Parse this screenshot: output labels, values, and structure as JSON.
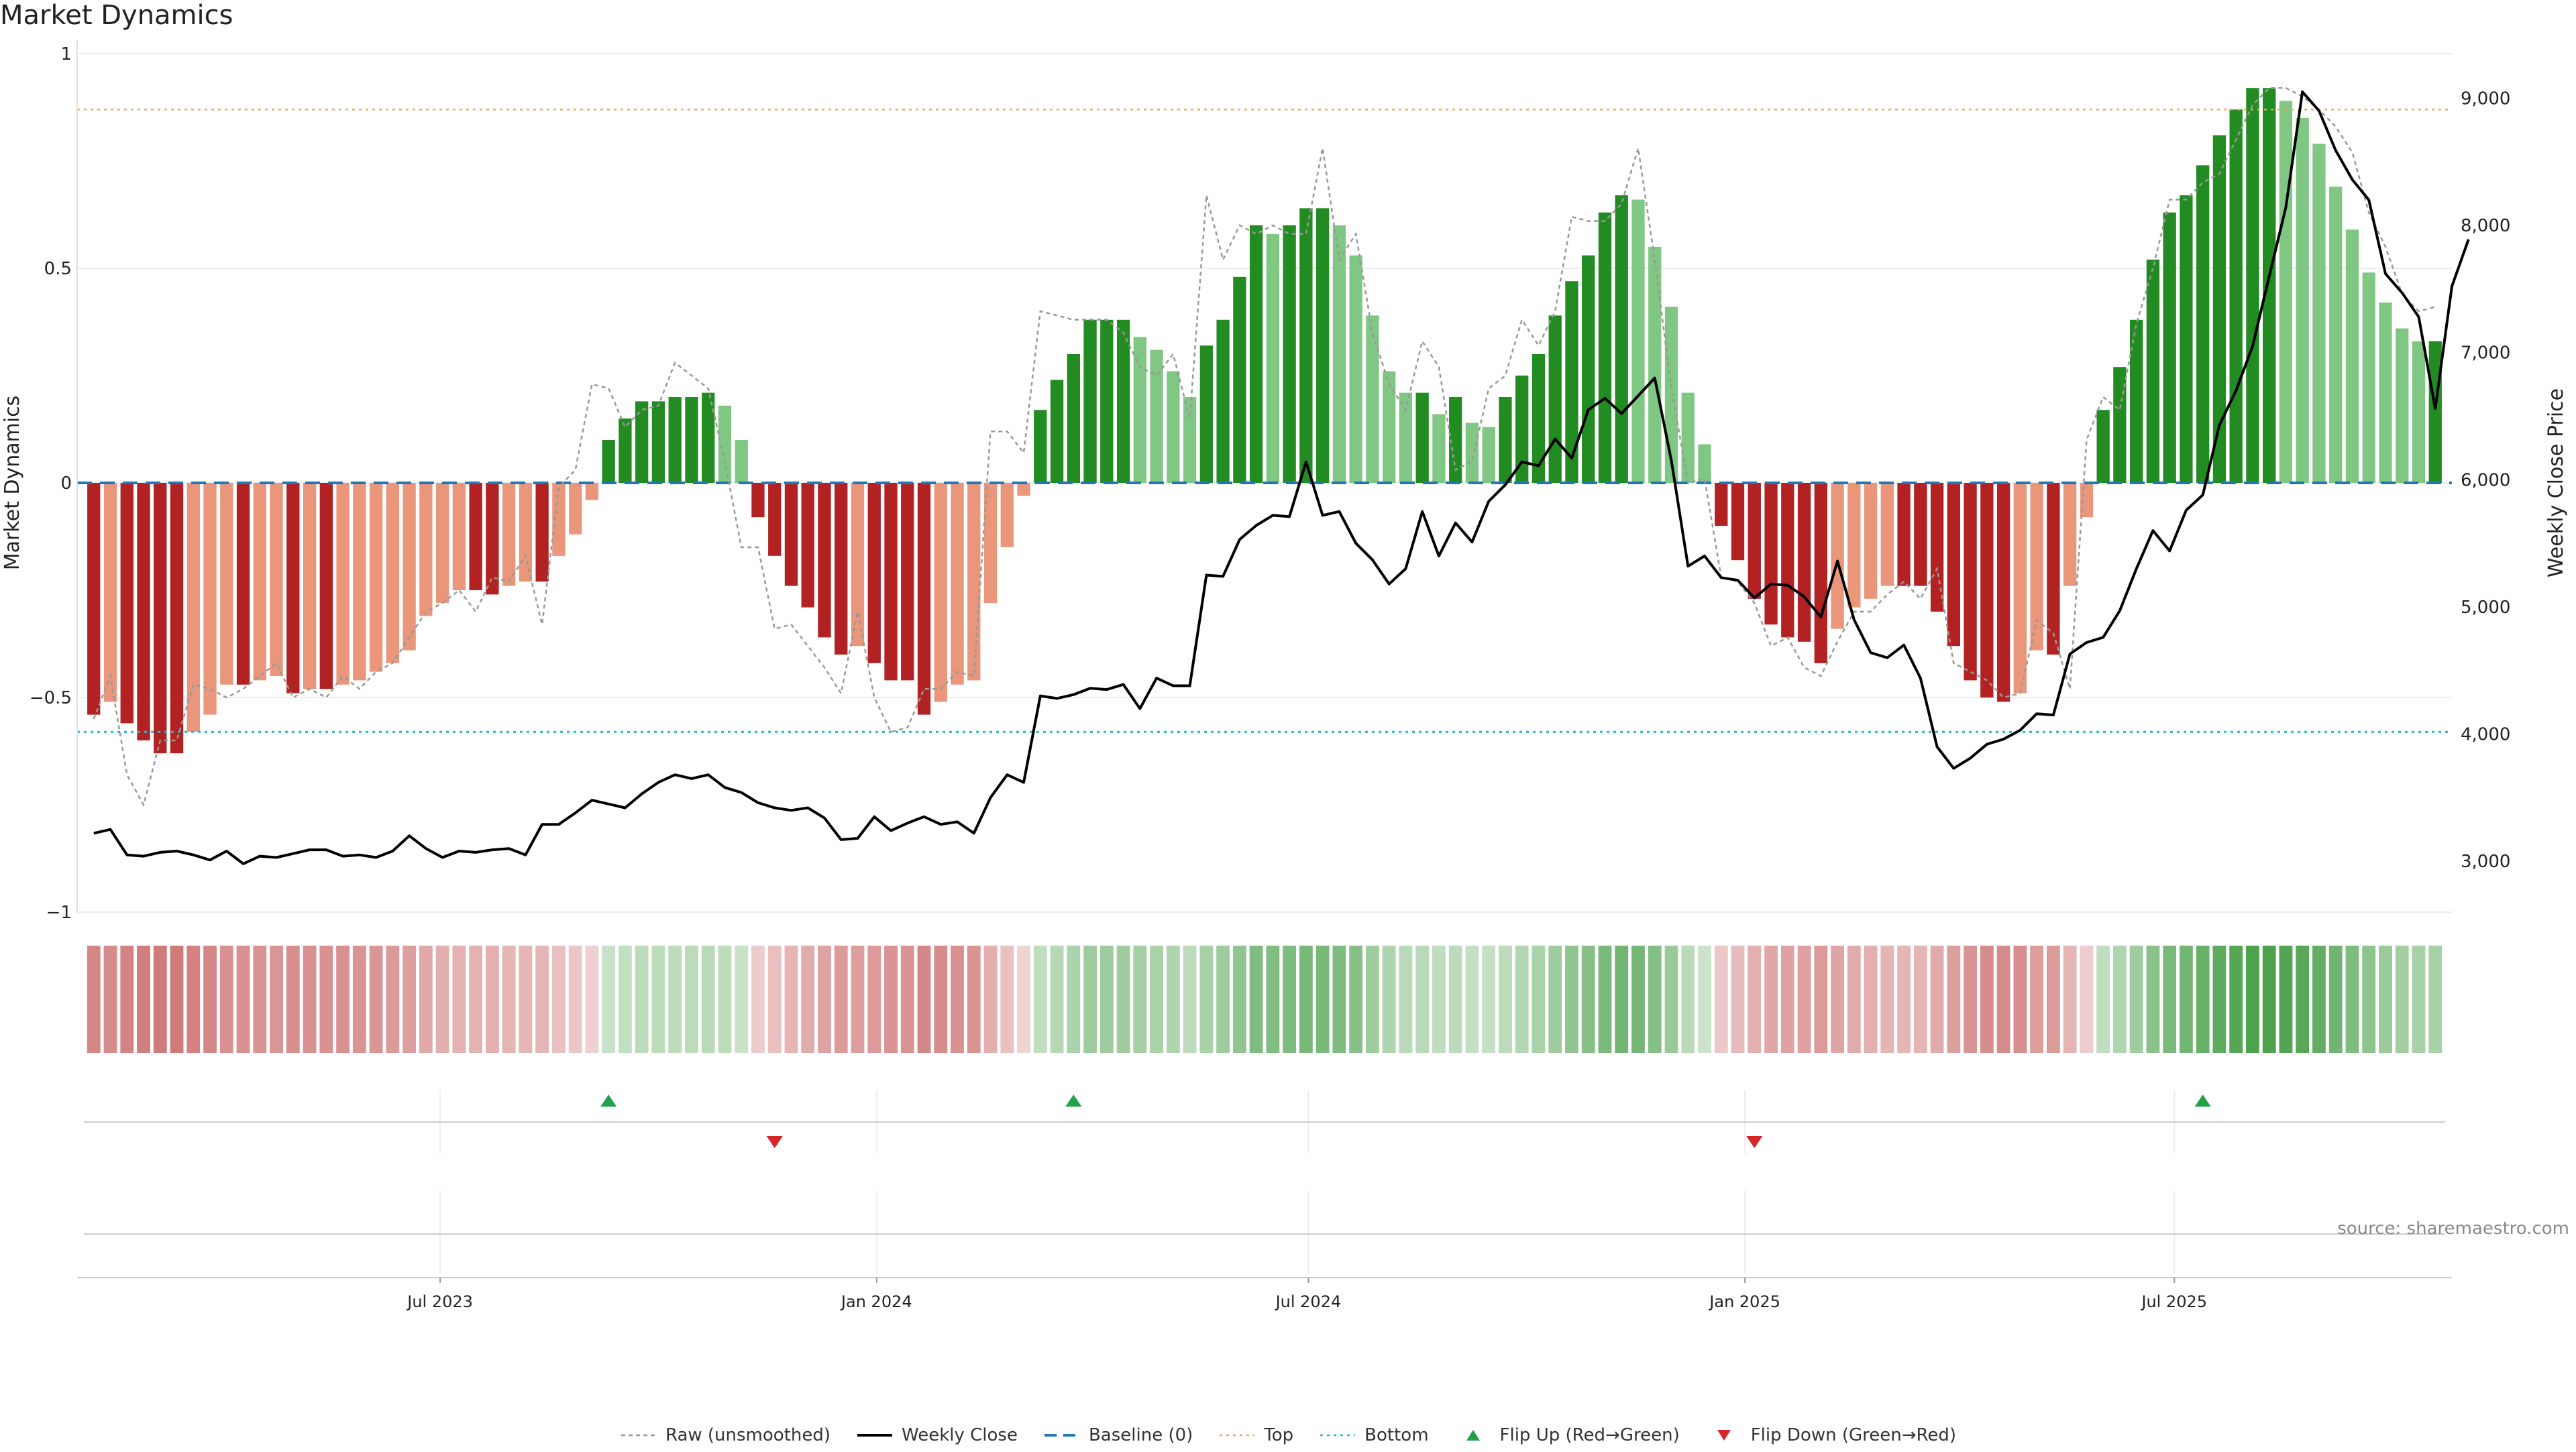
{
  "title": "Market Dynamics",
  "source": "source: sharemaestro.com",
  "chart_data": {
    "type": "bar",
    "ylabel": "Market Dynamics",
    "y2label": "Weekly Close Price",
    "ylim": [
      -1,
      1
    ],
    "y2lim": [
      2600,
      9350
    ],
    "yticks": [
      {
        "v": -1,
        "l": "−1"
      },
      {
        "v": -0.5,
        "l": "−0.5"
      },
      {
        "v": 0,
        "l": "0"
      },
      {
        "v": 0.5,
        "l": "0.5"
      },
      {
        "v": 1,
        "l": "1"
      }
    ],
    "y2ticks": [
      {
        "v": 3000,
        "l": "3,000"
      },
      {
        "v": 4000,
        "l": "4,000"
      },
      {
        "v": 5000,
        "l": "5,000"
      },
      {
        "v": 6000,
        "l": "6,000"
      },
      {
        "v": 7000,
        "l": "7,000"
      },
      {
        "v": 8000,
        "l": "8,000"
      },
      {
        "v": 9000,
        "l": "9,000"
      }
    ],
    "xlim": [
      "2023-01-29",
      "2025-10-26"
    ],
    "xticks": [
      {
        "d": "2023-07-01",
        "l": "Jul 2023"
      },
      {
        "d": "2024-01-01",
        "l": "Jan 2024"
      },
      {
        "d": "2024-07-01",
        "l": "Jul 2024"
      },
      {
        "d": "2025-01-01",
        "l": "Jan 2025"
      },
      {
        "d": "2025-07-01",
        "l": "Jul 2025"
      }
    ],
    "start_week": "2023-02-05",
    "top": 0.87,
    "bottom": -0.58,
    "baseline": 0,
    "colors": {
      "green_strong": "#228b22",
      "green_weak": "#81c784",
      "red_strong": "#b22222",
      "red_weak": "#e9967a",
      "close": "#000000",
      "raw": "#999999",
      "baseline": "#1f77b4",
      "top": "#f4a460",
      "bottom": "#17becf",
      "flip_up": "#22a04a",
      "flip_down": "#d62728"
    },
    "bars": [
      -0.54,
      -0.51,
      -0.56,
      -0.6,
      -0.63,
      -0.63,
      -0.58,
      -0.54,
      -0.47,
      -0.47,
      -0.46,
      -0.45,
      -0.49,
      -0.48,
      -0.48,
      -0.47,
      -0.46,
      -0.44,
      -0.42,
      -0.39,
      -0.31,
      -0.28,
      -0.25,
      -0.25,
      -0.26,
      -0.24,
      -0.23,
      -0.23,
      -0.17,
      -0.12,
      -0.04,
      0.1,
      0.15,
      0.19,
      0.19,
      0.2,
      0.2,
      0.21,
      0.18,
      0.1,
      -0.08,
      -0.17,
      -0.24,
      -0.29,
      -0.36,
      -0.4,
      -0.38,
      -0.42,
      -0.46,
      -0.46,
      -0.54,
      -0.51,
      -0.47,
      -0.46,
      -0.28,
      -0.15,
      -0.03,
      0.17,
      0.24,
      0.3,
      0.38,
      0.38,
      0.38,
      0.34,
      0.31,
      0.26,
      0.2,
      0.32,
      0.38,
      0.48,
      0.6,
      0.58,
      0.6,
      0.64,
      0.64,
      0.6,
      0.53,
      0.39,
      0.26,
      0.21,
      0.21,
      0.16,
      0.2,
      0.14,
      0.13,
      0.2,
      0.25,
      0.3,
      0.39,
      0.47,
      0.53,
      0.63,
      0.67,
      0.66,
      0.55,
      0.41,
      0.21,
      0.09,
      -0.1,
      -0.18,
      -0.27,
      -0.33,
      -0.36,
      -0.37,
      -0.42,
      -0.34,
      -0.29,
      -0.27,
      -0.24,
      -0.24,
      -0.24,
      -0.3,
      -0.38,
      -0.46,
      -0.5,
      -0.51,
      -0.49,
      -0.39,
      -0.4,
      -0.24,
      -0.08,
      0.17,
      0.27,
      0.38,
      0.52,
      0.63,
      0.67,
      0.74,
      0.81,
      0.87,
      0.92,
      0.92,
      0.89,
      0.85,
      0.79,
      0.69,
      0.59,
      0.49,
      0.42,
      0.36,
      0.33,
      0.33
    ],
    "raw": [
      -0.55,
      -0.45,
      -0.68,
      -0.75,
      -0.6,
      -0.6,
      -0.47,
      -0.48,
      -0.5,
      -0.48,
      -0.45,
      -0.42,
      -0.5,
      -0.48,
      -0.5,
      -0.45,
      -0.48,
      -0.44,
      -0.42,
      -0.36,
      -0.3,
      -0.28,
      -0.25,
      -0.3,
      -0.22,
      -0.23,
      -0.17,
      -0.33,
      -0.01,
      0.03,
      0.23,
      0.22,
      0.13,
      0.17,
      0.18,
      0.28,
      0.25,
      0.22,
      0.05,
      -0.15,
      -0.15,
      -0.34,
      -0.33,
      -0.38,
      -0.43,
      -0.49,
      -0.3,
      -0.5,
      -0.58,
      -0.57,
      -0.48,
      -0.48,
      -0.44,
      -0.45,
      0.12,
      0.12,
      0.07,
      0.4,
      0.39,
      0.38,
      0.38,
      0.38,
      0.35,
      0.27,
      0.25,
      0.3,
      0.15,
      0.67,
      0.52,
      0.6,
      0.58,
      0.6,
      0.58,
      0.58,
      0.78,
      0.52,
      0.58,
      0.35,
      0.23,
      0.17,
      0.33,
      0.27,
      0.03,
      0.05,
      0.22,
      0.25,
      0.38,
      0.32,
      0.4,
      0.62,
      0.61,
      0.61,
      0.65,
      0.78,
      0.52,
      0.22,
      0.0,
      0.01,
      -0.22,
      -0.23,
      -0.28,
      -0.38,
      -0.36,
      -0.43,
      -0.45,
      -0.37,
      -0.3,
      -0.3,
      -0.26,
      -0.23,
      -0.27,
      -0.2,
      -0.42,
      -0.44,
      -0.46,
      -0.5,
      -0.49,
      -0.32,
      -0.35,
      -0.48,
      0.1,
      0.2,
      0.17,
      0.37,
      0.5,
      0.66,
      0.66,
      0.7,
      0.72,
      0.8,
      0.88,
      0.92,
      0.92,
      0.9,
      0.87,
      0.83,
      0.77,
      0.63,
      0.55,
      0.44,
      0.4,
      0.41
    ],
    "weekly_close": [
      3220,
      3250,
      3050,
      3040,
      3070,
      3080,
      3050,
      3010,
      3080,
      2980,
      3040,
      3030,
      3060,
      3090,
      3090,
      3040,
      3050,
      3030,
      3080,
      3200,
      3100,
      3030,
      3080,
      3070,
      3090,
      3100,
      3050,
      3290,
      3290,
      3380,
      3480,
      3450,
      3420,
      3530,
      3620,
      3680,
      3650,
      3680,
      3580,
      3540,
      3460,
      3420,
      3400,
      3420,
      3340,
      3170,
      3180,
      3350,
      3240,
      3300,
      3350,
      3290,
      3310,
      3220,
      3500,
      3680,
      3620,
      4300,
      4280,
      4310,
      4360,
      4350,
      4390,
      4200,
      4440,
      4380,
      4380,
      5250,
      5240,
      5530,
      5640,
      5720,
      5710,
      6140,
      5720,
      5750,
      5500,
      5370,
      5180,
      5300,
      5750,
      5400,
      5660,
      5510,
      5830,
      5960,
      6140,
      6110,
      6320,
      6170,
      6550,
      6640,
      6520,
      6660,
      6800,
      6150,
      5320,
      5400,
      5230,
      5210,
      5070,
      5180,
      5170,
      5080,
      4920,
      5360,
      4900,
      4640,
      4600,
      4700,
      4440,
      3900,
      3730,
      3810,
      3920,
      3960,
      4030,
      4160,
      4150,
      4630,
      4720,
      4760,
      4970,
      5300,
      5600,
      5440,
      5760,
      5880,
      6430,
      6700,
      7050,
      7600,
      8140,
      9050,
      8900,
      8590,
      8360,
      8200,
      7620,
      7470,
      7280,
      6560,
      7520,
      7890
    ],
    "flips": [
      {
        "w": 31,
        "dir": "up"
      },
      {
        "w": 41,
        "dir": "down"
      },
      {
        "w": 59,
        "dir": "up"
      },
      {
        "w": 100,
        "dir": "down"
      },
      {
        "w": 127,
        "dir": "up"
      }
    ],
    "legend": [
      {
        "label": "Raw (unsmoothed)",
        "style": "raw"
      },
      {
        "label": "Weekly Close",
        "style": "close"
      },
      {
        "label": "Baseline (0)",
        "style": "baseline"
      },
      {
        "label": "Top",
        "style": "top"
      },
      {
        "label": "Bottom",
        "style": "bottom"
      },
      {
        "label": "Flip Up (Red→Green)",
        "style": "flip_up"
      },
      {
        "label": "Flip Down (Green→Red)",
        "style": "flip_down"
      }
    ]
  }
}
